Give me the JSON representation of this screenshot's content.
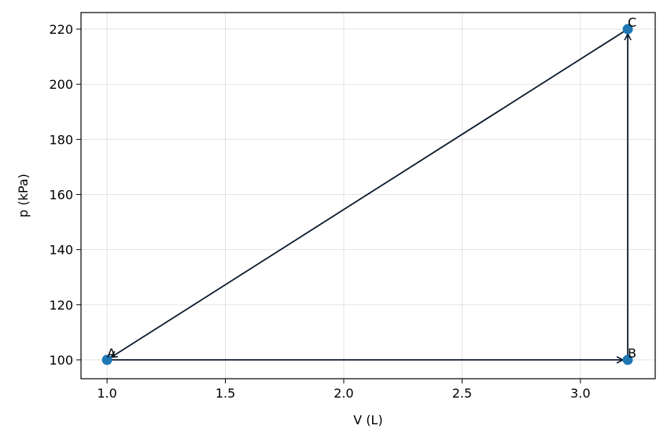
{
  "chart_data": {
    "type": "scatter",
    "x_label": "V (L)",
    "y_label": "p (kPa)",
    "series": [
      {
        "name": null,
        "color": "#1f77b4",
        "x": [
          1.0,
          3.2,
          3.2
        ],
        "values": [
          100,
          100,
          220
        ],
        "point_labels": [
          "A",
          "B",
          "C"
        ]
      }
    ],
    "arrow_color": "#0b1a2b",
    "closed_cycle": true,
    "xlim": [
      0.89,
      3.316
    ],
    "ylim": [
      93.16,
      226
    ],
    "xticks": [
      {
        "value": 1.0,
        "label": "1.0"
      },
      {
        "value": 1.5,
        "label": "1.5"
      },
      {
        "value": 2.0,
        "label": "2.0"
      },
      {
        "value": 2.5,
        "label": "2.5"
      },
      {
        "value": 3.0,
        "label": "3.0"
      }
    ],
    "yticks": [
      100,
      120,
      140,
      160,
      180,
      200,
      220
    ],
    "grid": true
  }
}
